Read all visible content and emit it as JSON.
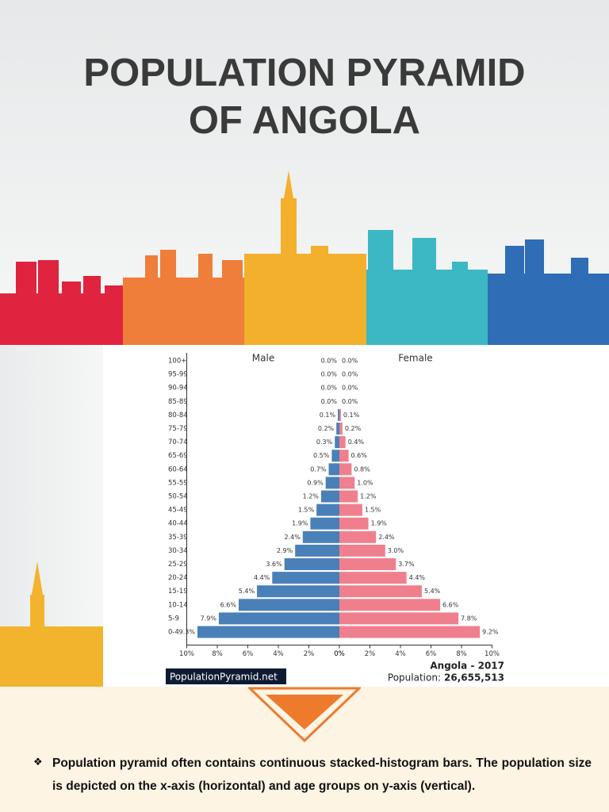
{
  "header": {
    "title": "POPULATION PYRAMID OF ANGOLA"
  },
  "chart_data": {
    "type": "pyramid",
    "categories": [
      "100+",
      "95-99",
      "90-94",
      "85-89",
      "80-84",
      "75-79",
      "70-74",
      "65-69",
      "60-64",
      "55-59",
      "50-54",
      "45-49",
      "40-44",
      "35-39",
      "30-34",
      "25-29",
      "20-24",
      "15-19",
      "10-14",
      "5-9",
      "0-4"
    ],
    "series": [
      {
        "name": "Male",
        "color": "#4a80b8",
        "values": [
          0.0,
          0.0,
          0.0,
          0.0,
          0.1,
          0.2,
          0.3,
          0.5,
          0.7,
          0.9,
          1.2,
          1.5,
          1.9,
          2.4,
          2.9,
          3.6,
          4.4,
          5.4,
          6.6,
          7.9,
          9.3
        ],
        "value_labels": [
          "0.0%",
          "0.0%",
          "0.0%",
          "0.0%",
          "0.1%",
          "0.2%",
          "0.3%",
          "0.5%",
          "0.7%",
          "0.9%",
          "1.2%",
          "1.5%",
          "1.9%",
          "2.4%",
          "2.9%",
          "3.6%",
          "4.4%",
          "5.4%",
          "6.6%",
          "7.9%",
          "9.3%"
        ]
      },
      {
        "name": "Female",
        "color": "#f07f8e",
        "values": [
          0.0,
          0.0,
          0.0,
          0.0,
          0.1,
          0.2,
          0.4,
          0.6,
          0.8,
          1.0,
          1.2,
          1.5,
          1.9,
          2.4,
          3.0,
          3.7,
          4.4,
          5.4,
          6.6,
          7.8,
          9.2
        ],
        "value_labels": [
          "0.0%",
          "0.0%",
          "0.0%",
          "0.0%",
          "0.1%",
          "0.2%",
          "0.4%",
          "0.6%",
          "0.8%",
          "1.0%",
          "1.2%",
          "1.5%",
          "1.9%",
          "2.4%",
          "3.0%",
          "3.7%",
          "4.4%",
          "5.4%",
          "6.6%",
          "7.8%",
          "9.2%"
        ]
      }
    ],
    "xlim": [
      0,
      10
    ],
    "xticks": [
      {
        "value": 0,
        "label": "0%"
      },
      {
        "value": 2,
        "label": "2%"
      },
      {
        "value": 4,
        "label": "4%"
      },
      {
        "value": 6,
        "label": "6%"
      },
      {
        "value": 8,
        "label": "8%"
      },
      {
        "value": 10,
        "label": "10%"
      }
    ],
    "source": "PopulationPyramid.net",
    "caption": "Angola - 2017",
    "population_label": "Population:",
    "population": "26,655,513"
  },
  "body": {
    "bullet": "Population pyramid often contains continuous stacked-histogram bars. The population size is depicted on the x-axis (horizontal) and age groups on y-axis (vertical)."
  }
}
